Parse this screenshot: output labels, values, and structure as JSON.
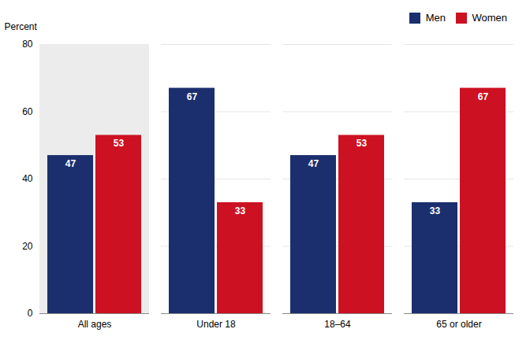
{
  "chart_data": {
    "type": "bar",
    "ylabel": "Percent",
    "categories": [
      "All ages",
      "Under 18",
      "18–64",
      "65 or older"
    ],
    "series": [
      {
        "name": "Men",
        "color": "#1b2f6e",
        "values": [
          47,
          67,
          47,
          33
        ]
      },
      {
        "name": "Women",
        "color": "#cc1122",
        "values": [
          53,
          33,
          53,
          67
        ]
      }
    ],
    "ylim": [
      0,
      80
    ],
    "yticks": [
      0,
      20,
      40,
      60,
      80
    ],
    "grid": true,
    "legend": "upper right",
    "data_labels": true
  }
}
